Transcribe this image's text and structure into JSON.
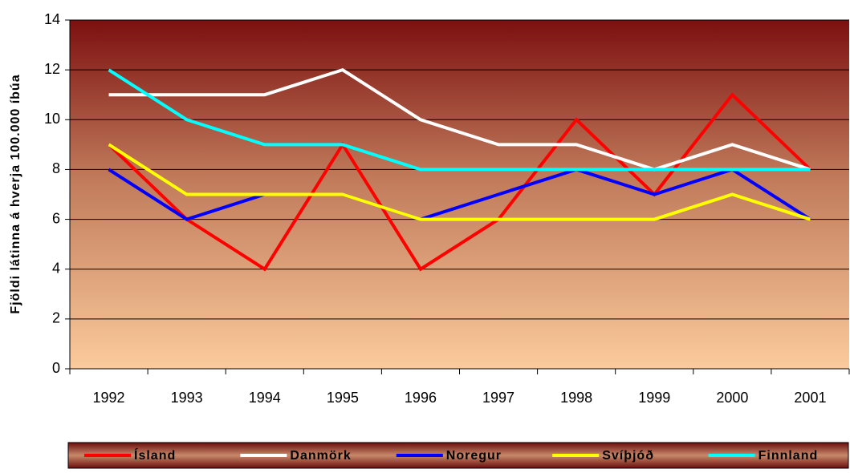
{
  "chart_data": {
    "type": "line",
    "y_label": "Fjöldi látinna á hverja 100.000 íbúa",
    "categories": [
      "1992",
      "1993",
      "1994",
      "1995",
      "1996",
      "1997",
      "1998",
      "1999",
      "2000",
      "2001"
    ],
    "series": [
      {
        "name": "Ísland",
        "color": "#ff0000",
        "values": [
          9,
          6,
          4,
          9,
          4,
          6,
          10,
          7,
          11,
          8
        ]
      },
      {
        "name": "Danmörk",
        "color": "#ffffff",
        "values": [
          11,
          11,
          11,
          12,
          10,
          9,
          9,
          8,
          9,
          8
        ]
      },
      {
        "name": "Noregur",
        "color": "#0000ff",
        "values": [
          8,
          6,
          7,
          7,
          6,
          7,
          8,
          7,
          8,
          6
        ]
      },
      {
        "name": "Svíþjóð",
        "color": "#ffff00",
        "values": [
          9,
          7,
          7,
          7,
          6,
          6,
          6,
          6,
          7,
          6
        ]
      },
      {
        "name": "Finnland",
        "color": "#00ffff",
        "values": [
          12,
          10,
          9,
          9,
          8,
          8,
          8,
          8,
          8,
          8
        ]
      }
    ],
    "ylim": [
      0,
      14
    ],
    "yticks": [
      0,
      2,
      4,
      6,
      8,
      10,
      12,
      14
    ],
    "grid": true,
    "legend": "bottom"
  }
}
